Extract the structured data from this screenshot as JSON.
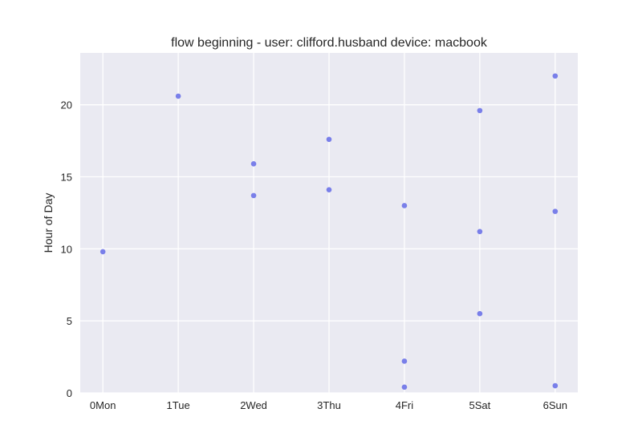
{
  "chart_data": {
    "type": "scatter",
    "title": "flow beginning - user: clifford.husband device: macbook",
    "xlabel": "",
    "ylabel": "Hour of Day",
    "categories": [
      "0Mon",
      "1Tue",
      "2Wed",
      "3Thu",
      "4Fri",
      "5Sat",
      "6Sun"
    ],
    "xlim": [
      -0.3,
      6.3
    ],
    "ylim": [
      0,
      23.6
    ],
    "yticks": [
      0,
      5,
      10,
      15,
      20
    ],
    "grid": true,
    "point_color": "#6c72e8",
    "background_color": "#eaeaf2",
    "points": [
      {
        "x": 0,
        "y": 9.8
      },
      {
        "x": 1,
        "y": 20.6
      },
      {
        "x": 2,
        "y": 15.9
      },
      {
        "x": 2,
        "y": 13.7
      },
      {
        "x": 3,
        "y": 17.6
      },
      {
        "x": 3,
        "y": 14.1
      },
      {
        "x": 4,
        "y": 13.0
      },
      {
        "x": 4,
        "y": 2.2
      },
      {
        "x": 4,
        "y": 0.4
      },
      {
        "x": 5,
        "y": 19.6
      },
      {
        "x": 5,
        "y": 11.2
      },
      {
        "x": 5,
        "y": 5.5
      },
      {
        "x": 6,
        "y": 22.0
      },
      {
        "x": 6,
        "y": 12.6
      },
      {
        "x": 6,
        "y": 0.5
      }
    ]
  }
}
